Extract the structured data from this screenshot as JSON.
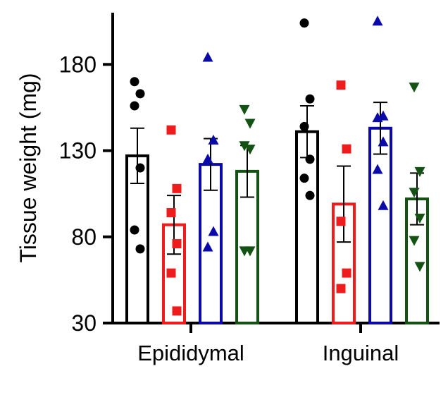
{
  "chart_data": {
    "type": "bar",
    "title": "",
    "xlabel": "",
    "ylabel": "Tissue weight (mg)",
    "ylim": [
      30,
      210
    ],
    "yticks": [
      "30",
      "80",
      "130",
      "180"
    ],
    "categories": [
      "Epididymal",
      "Inguinal"
    ],
    "grid": false,
    "legend": "none",
    "series": [
      {
        "color": "#000000",
        "marker": "circle",
        "values": [
          127,
          141
        ],
        "sem": [
          16,
          15
        ],
        "points": [
          [
            170,
            163,
            156,
            120,
            84,
            73
          ],
          [
            204,
            160,
            144,
            125,
            114,
            104
          ]
        ]
      },
      {
        "color": "#ee1c1c",
        "marker": "square",
        "values": [
          87,
          99
        ],
        "sem": [
          17,
          22
        ],
        "points": [
          [
            142,
            108,
            94,
            76,
            59,
            37
          ],
          [
            168,
            131,
            89,
            59,
            50
          ]
        ]
      },
      {
        "color": "#0a0aa8",
        "marker": "triangle-up",
        "values": [
          122,
          143
        ],
        "sem": [
          15,
          15
        ],
        "points": [
          [
            184,
            136,
            125,
            83,
            74
          ],
          [
            205,
            150,
            149,
            135,
            119,
            98
          ]
        ]
      },
      {
        "color": "#145214",
        "marker": "triangle-down",
        "values": [
          118,
          102
        ],
        "sem": [
          15,
          15
        ],
        "points": [
          [
            154,
            146,
            133,
            131,
            72,
            72
          ],
          [
            167,
            118,
            106,
            91,
            78,
            63
          ]
        ]
      }
    ]
  }
}
